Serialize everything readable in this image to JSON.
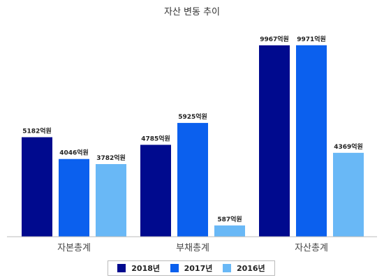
{
  "chart_data": {
    "type": "bar",
    "title": "자산 변동 추이",
    "categories": [
      "자본총계",
      "부채총계",
      "자산총계"
    ],
    "unit": "억원",
    "series": [
      {
        "name": "2018년",
        "color": "#000a8e",
        "values": [
          5182,
          4785,
          9967
        ],
        "labels": [
          "5182억원",
          "4785억원",
          "9967억원"
        ]
      },
      {
        "name": "2017년",
        "color": "#0b60ee",
        "values": [
          4046,
          5925,
          9971
        ],
        "labels": [
          "4046억원",
          "5925억원",
          "9971억원"
        ]
      },
      {
        "name": "2016년",
        "color": "#69b8f6",
        "values": [
          3782,
          587,
          4369
        ],
        "labels": [
          "3782억원",
          "587억원",
          "4369억원"
        ]
      }
    ],
    "ylim": [
      0,
      10000
    ],
    "grid": false,
    "legend_position": "bottom"
  }
}
